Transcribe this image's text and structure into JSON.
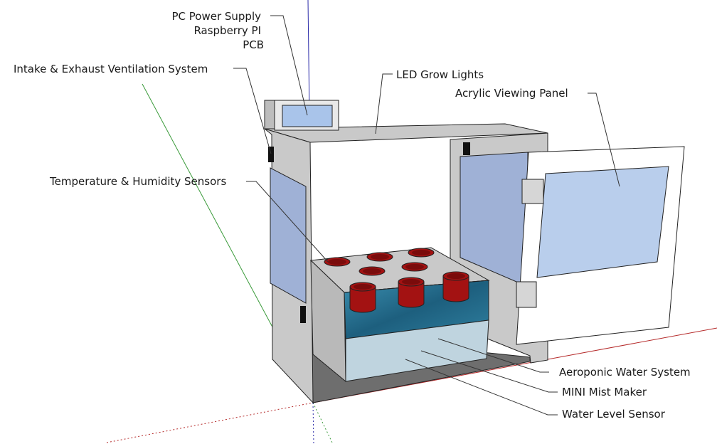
{
  "labels": {
    "psu_line1": "PC Power Supply",
    "psu_line2": "Raspberry PI",
    "psu_line3": "PCB",
    "ventilation": "Intake & Exhaust Ventilation System",
    "led": "LED Grow Lights",
    "acrylic": "Acrylic Viewing Panel",
    "sensors": "Temperature & Humidity Sensors",
    "aeroponic": "Aeroponic Water System",
    "mist": "MINI Mist Maker",
    "water_level": "Water Level Sensor"
  },
  "colors": {
    "cabinet": "#c9c9c9",
    "cabinet_dark": "#9c9c9c",
    "floor": "#6e6e6e",
    "acrylic_window": "#b9ceec",
    "side_window": "#9fb1d6",
    "door": "#ffffff",
    "pot": "#a31212",
    "pot_top": "#7a0b0b",
    "water": "#1f6b8c",
    "tank": "#bfd4df",
    "axis_green": "#3a9a3a",
    "axis_blue": "#2a2aa8",
    "axis_red": "#b52a2a"
  }
}
